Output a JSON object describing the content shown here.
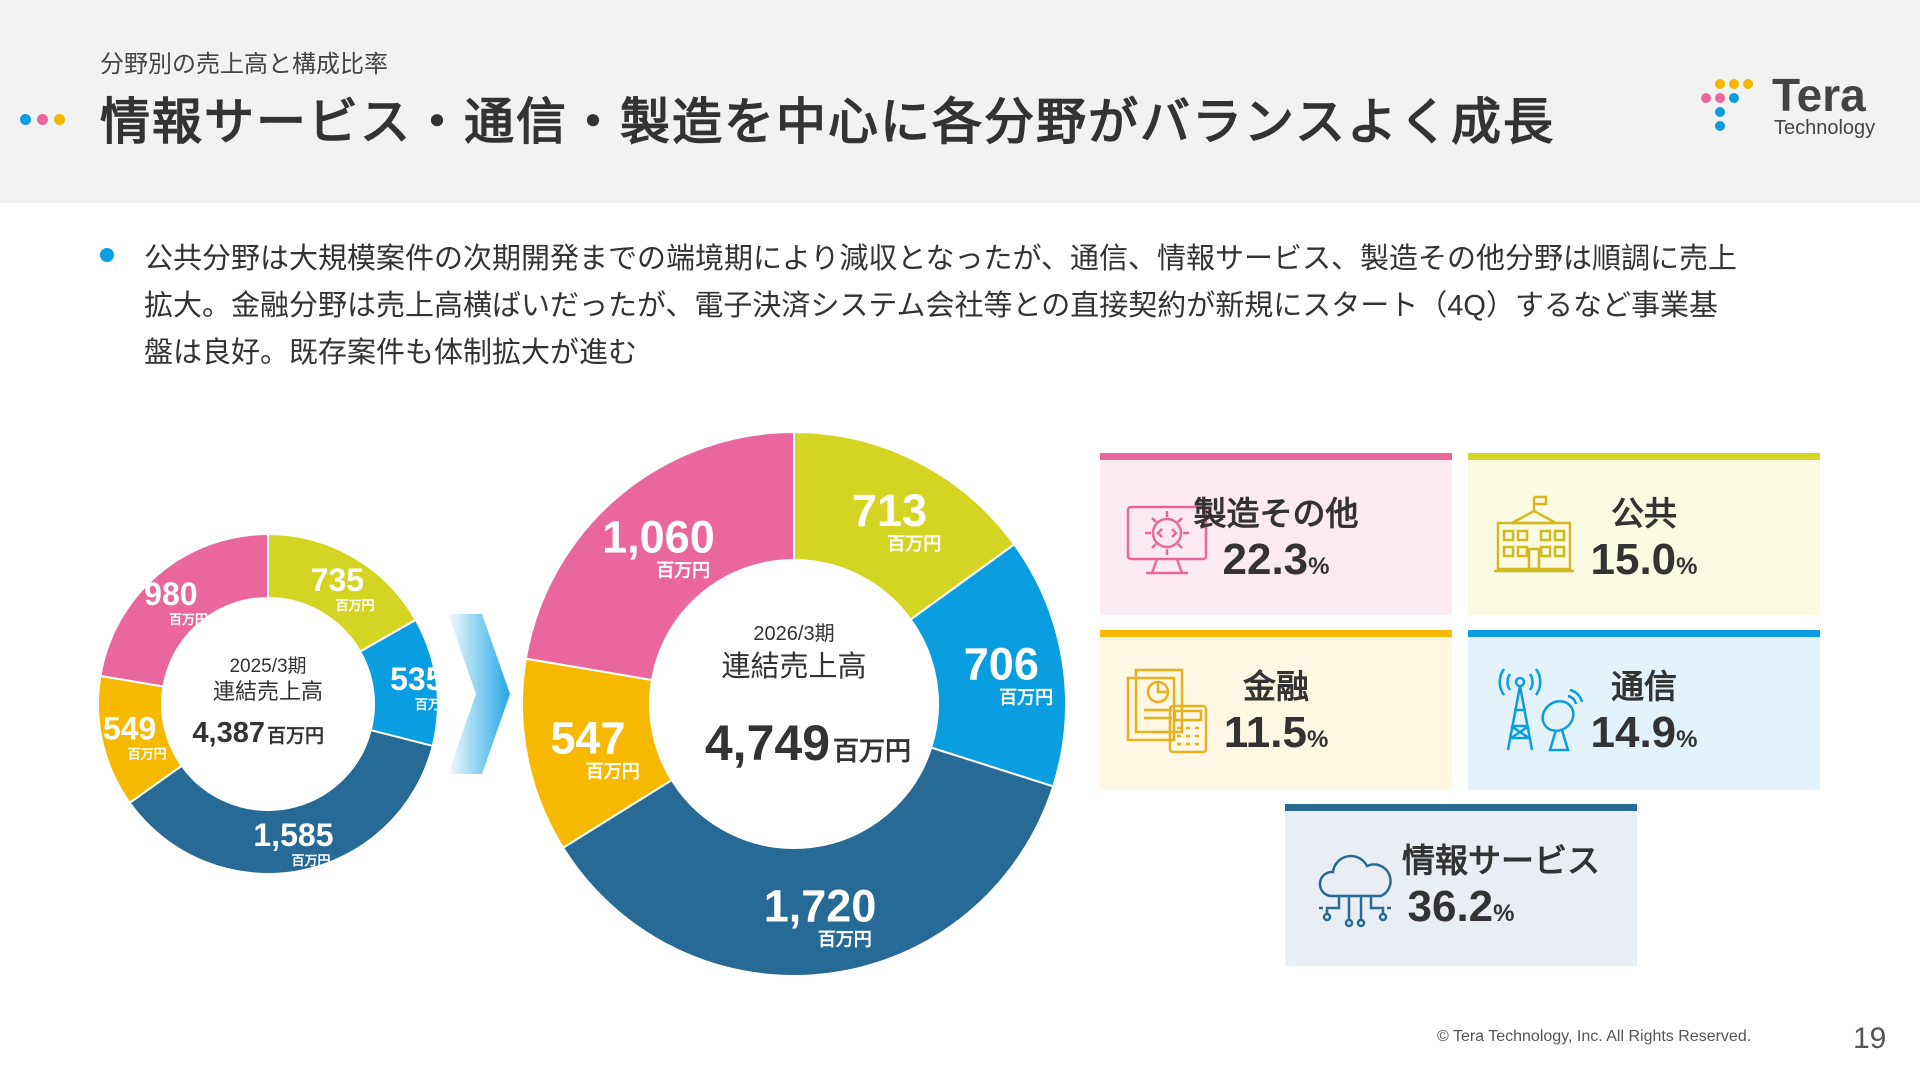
{
  "header": {
    "subtitle": "分野別の売上高と構成比率",
    "title": "情報サービス・通信・製造を中心に各分野がバランスよく成長",
    "dot_colors": [
      "#0a9de0",
      "#e9679d",
      "#f5b700"
    ]
  },
  "logo": {
    "name": "Tera",
    "sub": "Technology"
  },
  "bullet": {
    "lines": [
      "公共分野は大規模案件の次期開発までの端境期により減収となったが、通信、情報サービス、製造その他分野は順調に売上",
      "拡大。金融分野は売上高横ばいだったが、電子決済システム会社等との直接契約が新規にスタート（4Q）するなど事業基",
      "盤は良好。既存案件も体制拡大が進む"
    ]
  },
  "colors": {
    "manufacturing": "#e9679d",
    "public": "#d4d422",
    "telecom": "#0a9de0",
    "info_service": "#286a96",
    "finance": "#f6b900"
  },
  "chart_data": [
    {
      "type": "pie",
      "period": "2025/3期",
      "center_label": "連結売上高",
      "total": "4,387",
      "unit": "百万円",
      "categories": [
        "製造その他",
        "公共",
        "通信",
        "情報サービス",
        "金融"
      ],
      "values": [
        980,
        735,
        535,
        1585,
        549
      ],
      "value_labels": [
        "980",
        "735",
        "535",
        "1,585",
        "549"
      ]
    },
    {
      "type": "pie",
      "period": "2026/3期",
      "center_label": "連結売上高",
      "total": "4,749",
      "unit": "百万円",
      "categories": [
        "製造その他",
        "公共",
        "通信",
        "情報サービス",
        "金融"
      ],
      "values": [
        1060,
        713,
        706,
        1720,
        547
      ],
      "value_labels": [
        "1,060",
        "713",
        "706",
        "1,720",
        "547"
      ]
    }
  ],
  "cards": [
    {
      "name": "製造その他",
      "pct": "22.3",
      "unit": "%",
      "icon": "gear-monitor-icon"
    },
    {
      "name": "公共",
      "pct": "15.0",
      "unit": "%",
      "icon": "government-building-icon"
    },
    {
      "name": "金融",
      "pct": "11.5",
      "unit": "%",
      "icon": "document-calculator-icon"
    },
    {
      "name": "通信",
      "pct": "14.9",
      "unit": "%",
      "icon": "antenna-tower-icon"
    },
    {
      "name": "情報サービス",
      "pct": "36.2",
      "unit": "%",
      "icon": "cloud-network-icon"
    }
  ],
  "footer": {
    "copyright": "© Tera Technology, Inc. All Rights Reserved.",
    "page": "19"
  }
}
